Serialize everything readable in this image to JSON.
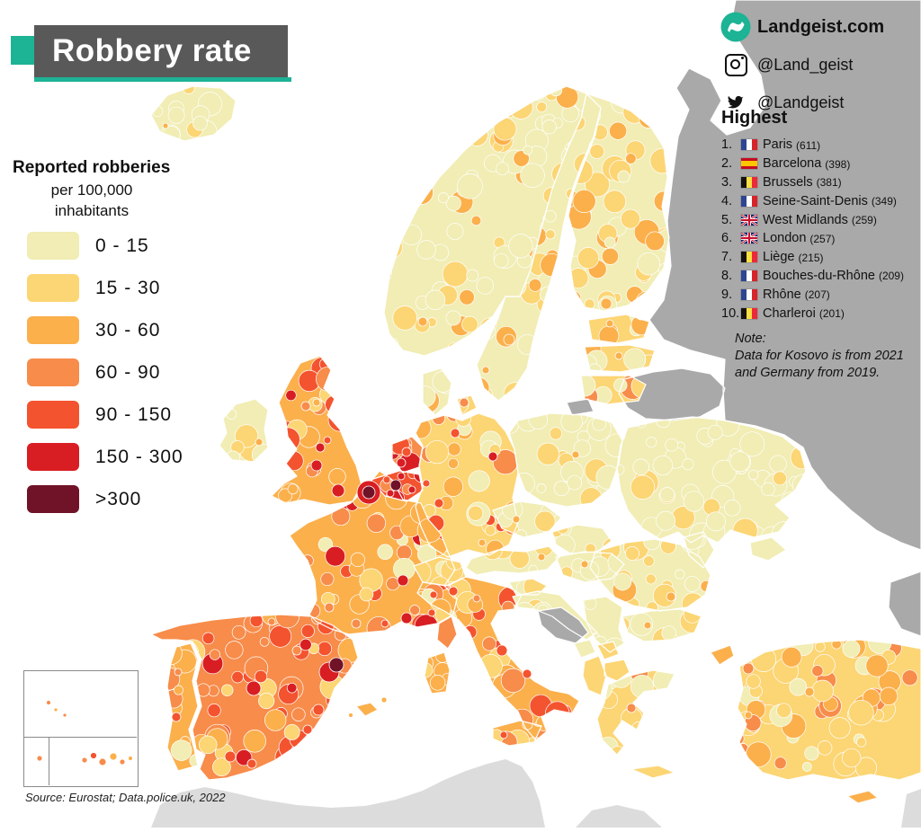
{
  "title": "Robbery rate",
  "branding": {
    "site": "Landgeist.com",
    "instagram": "@Land_geist",
    "twitter": "@Landgeist"
  },
  "legend": {
    "heading": "Reported robberies",
    "sub1": "per 100,000",
    "sub2": "inhabitants",
    "bins": [
      {
        "label": "0  -  15",
        "color": "#f1edb4"
      },
      {
        "label": "15 -  30",
        "color": "#fcd574"
      },
      {
        "label": "30 -  60",
        "color": "#fbb04c"
      },
      {
        "label": "60 -  90",
        "color": "#f78c4b"
      },
      {
        "label": "90 - 150",
        "color": "#f4532f"
      },
      {
        "label": "150 - 300",
        "color": "#d81e23"
      },
      {
        "label": ">300",
        "color": "#701328"
      }
    ]
  },
  "highest": {
    "heading": "Highest",
    "items": [
      {
        "rank": "1.",
        "flag": "fr",
        "name": "Paris",
        "value": "(611)"
      },
      {
        "rank": "2.",
        "flag": "es",
        "name": "Barcelona",
        "value": "(398)"
      },
      {
        "rank": "3.",
        "flag": "be",
        "name": "Brussels",
        "value": "(381)"
      },
      {
        "rank": "4.",
        "flag": "fr",
        "name": "Seine-Saint-Denis",
        "value": "(349)"
      },
      {
        "rank": "5.",
        "flag": "gb",
        "name": "West Midlands",
        "value": "(259)"
      },
      {
        "rank": "6.",
        "flag": "gb",
        "name": "London",
        "value": "(257)"
      },
      {
        "rank": "7.",
        "flag": "be",
        "name": "Liège",
        "value": "(215)"
      },
      {
        "rank": "8.",
        "flag": "fr",
        "name": "Bouches-du-Rhône",
        "value": "(209)"
      },
      {
        "rank": "9.",
        "flag": "fr",
        "name": "Rhône",
        "value": "(207)"
      },
      {
        "rank": "10.",
        "flag": "be",
        "name": "Charleroi",
        "value": "(201)"
      }
    ]
  },
  "note": {
    "line1": "Note:",
    "line2": "Data for Kosovo is from 2021",
    "line3": "and Germany from 2019."
  },
  "source": "Source: Eurostat; Data.police.uk, 2022",
  "colors": {
    "accent": "#1db395",
    "banner": "#595959",
    "nodata": "#a9a9a9",
    "other": "#dcdcdc",
    "sea": "#ffffff"
  }
}
